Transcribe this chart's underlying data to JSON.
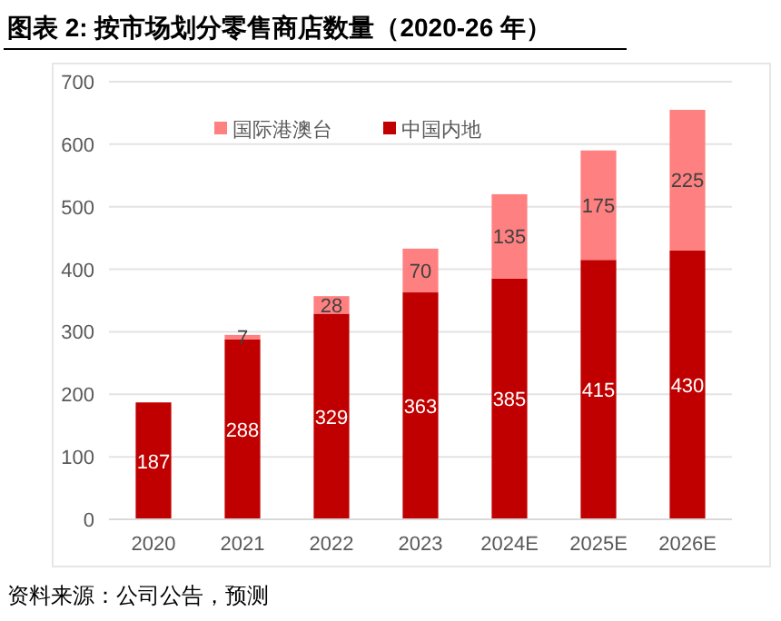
{
  "chart_data": {
    "type": "bar",
    "title": "图表 2: 按市场划分零售商店数量（2020-26 年）",
    "stacked": true,
    "categories": [
      "2020",
      "2021",
      "2022",
      "2023",
      "2024E",
      "2025E",
      "2026E"
    ],
    "series": [
      {
        "name": "中国内地",
        "color": "#c00000",
        "values": [
          187,
          288,
          329,
          363,
          385,
          415,
          430
        ]
      },
      {
        "name": "国际港澳台",
        "color": "#ff8080",
        "values": [
          null,
          7,
          28,
          70,
          135,
          175,
          225
        ]
      }
    ],
    "ylim": [
      0,
      700
    ],
    "yticks": [
      0,
      100,
      200,
      300,
      400,
      500,
      600,
      700
    ],
    "grid": "y",
    "legend": "top",
    "data_labels": true,
    "annotations": [
      "资料来源：公司公告，预测"
    ]
  }
}
